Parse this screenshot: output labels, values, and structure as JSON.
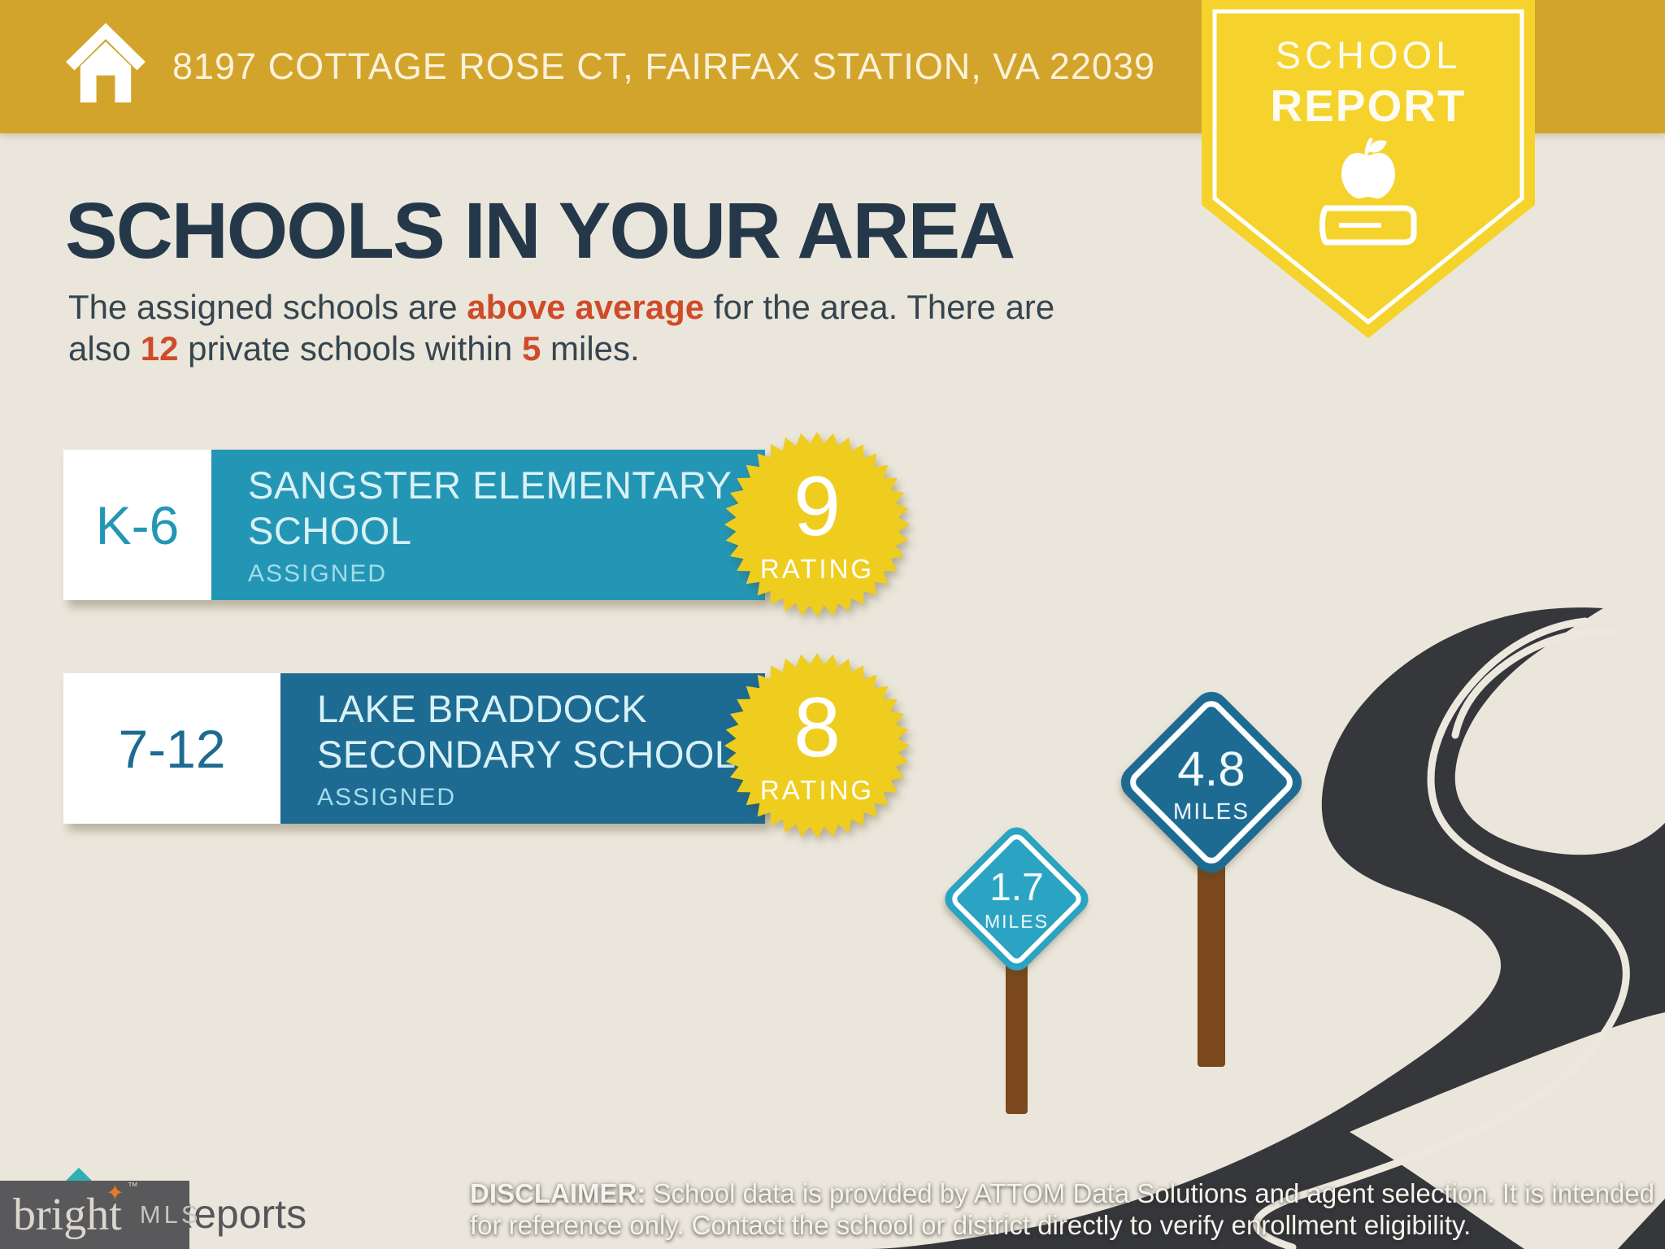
{
  "banner": {
    "address": "8197 COTTAGE ROSE CT, FAIRFAX STATION, VA 22039"
  },
  "ribbon": {
    "line1": "SCHOOL",
    "line2": "REPORT"
  },
  "heading": {
    "title": "SCHOOLS IN YOUR AREA"
  },
  "intro": {
    "l1a": "The assigned schools are ",
    "l1hl": "above average",
    "l1b": " for the area. There are",
    "l2a": "also ",
    "l2hl1": "12",
    "l2b": " private schools within ",
    "l2hl2": "5",
    "l2c": " miles."
  },
  "schools": [
    {
      "grades": "K-6",
      "name_line1": "SANGSTER ELEMENTARY",
      "name_line2": "SCHOOL",
      "status": "ASSIGNED",
      "rating": "9",
      "rating_label": "RATING",
      "color": "#2496B5"
    },
    {
      "grades": "7-12",
      "name_line1": "LAKE BRADDOCK",
      "name_line2": "SECONDARY SCHOOL",
      "status": "ASSIGNED",
      "rating": "8",
      "rating_label": "RATING",
      "color": "#1D6B93"
    }
  ],
  "signs": [
    {
      "distance": "4.8",
      "unit": "MILES",
      "color": "#1D6B93"
    },
    {
      "distance": "1.7",
      "unit": "MILES",
      "color": "#2BA3C2"
    }
  ],
  "footer": {
    "disclaimer_label": "DISCLAIMER:",
    "disclaimer_l1": " School data is provided by ATTOM Data Solutions and agent selection. It is intended",
    "disclaimer_l2": "for reference only. Contact the school or district directly to verify enrollment eligibility.",
    "partial_logo_text": "Reports",
    "brand": {
      "word": "bright",
      "tm": "™",
      "suffix": "MLS"
    }
  },
  "colors": {
    "background": "#EAE6DB",
    "banner_gold": "#D2A42B",
    "ribbon_yellow": "#F5D32C",
    "starburst_yellow": "#EFCD1F",
    "heading_navy": "#25384A",
    "body_text": "#36454F",
    "accent_red": "#D04B28",
    "elementary_teal": "#2496B5",
    "secondary_blue": "#1D6B93",
    "sign_small_teal": "#2BA3C2",
    "road_charcoal": "#36373B",
    "post_brown": "#7A481C"
  },
  "icons": {
    "banner": "home-icon",
    "ribbon_apple": "apple-icon",
    "ribbon_book": "book-icon",
    "brand_star": "four-point-star-icon",
    "footer_logo": "roof-icon"
  }
}
